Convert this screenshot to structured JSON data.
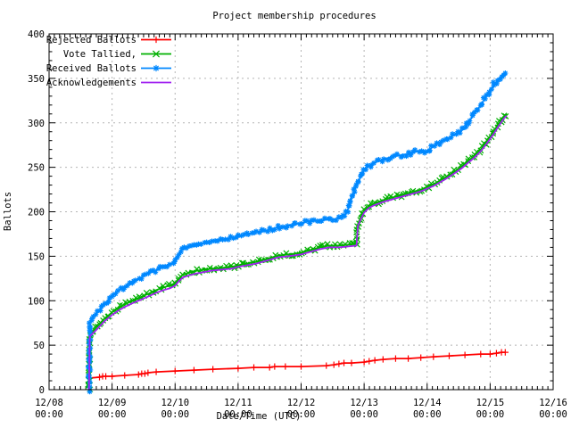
{
  "title": "Project membership procedures",
  "chart_data": {
    "type": "line",
    "title": "Project membership procedures",
    "xlabel": "Date/Time (UTC)",
    "ylabel": "Ballots",
    "grid": true,
    "legend_position": "top-left",
    "ylim": [
      0,
      400
    ],
    "y_ticks": [
      0,
      50,
      100,
      150,
      200,
      250,
      300,
      350,
      400
    ],
    "y_minor_step": 10,
    "x_tick_dates": [
      "12/08",
      "12/09",
      "12/10",
      "12/11",
      "12/12",
      "12/13",
      "12/14",
      "12/15",
      "12/16"
    ],
    "x_tick_time": "00:00",
    "x_range_days": [
      0,
      8
    ],
    "x_minor_per_day": 12,
    "series": [
      {
        "name": "Rejected Ballots",
        "color": "#ff0000",
        "marker": "plus",
        "marker_mode": "points",
        "points": [
          [
            0.635,
            0
          ],
          [
            0.645,
            13
          ],
          [
            0.8,
            14
          ],
          [
            0.85,
            15
          ],
          [
            0.9,
            15
          ],
          [
            1.0,
            15
          ],
          [
            1.2,
            16
          ],
          [
            1.42,
            17
          ],
          [
            1.47,
            18
          ],
          [
            1.52,
            18
          ],
          [
            1.57,
            19
          ],
          [
            1.7,
            20
          ],
          [
            2.0,
            21
          ],
          [
            2.3,
            22
          ],
          [
            2.6,
            23
          ],
          [
            3.0,
            24
          ],
          [
            3.25,
            25
          ],
          [
            3.5,
            25
          ],
          [
            3.58,
            26
          ],
          [
            3.75,
            26
          ],
          [
            4.0,
            26
          ],
          [
            4.4,
            27
          ],
          [
            4.52,
            28
          ],
          [
            4.6,
            29
          ],
          [
            4.68,
            30
          ],
          [
            4.8,
            30
          ],
          [
            5.0,
            31
          ],
          [
            5.08,
            32
          ],
          [
            5.17,
            33
          ],
          [
            5.3,
            34
          ],
          [
            5.5,
            35
          ],
          [
            5.7,
            35
          ],
          [
            5.9,
            36
          ],
          [
            6.1,
            37
          ],
          [
            6.35,
            38
          ],
          [
            6.6,
            39
          ],
          [
            6.85,
            40
          ],
          [
            7.0,
            40
          ],
          [
            7.1,
            41
          ],
          [
            7.18,
            42
          ],
          [
            7.24,
            42
          ]
        ]
      },
      {
        "name": "Vote Tallied,",
        "color": "#00b000",
        "marker": "cross",
        "marker_mode": "dense",
        "points": [
          [
            0.635,
            0
          ],
          [
            0.645,
            62
          ],
          [
            0.72,
            68
          ],
          [
            0.8,
            74
          ],
          [
            0.88,
            80
          ],
          [
            0.95,
            84
          ],
          [
            1.0,
            87
          ],
          [
            1.1,
            92
          ],
          [
            1.2,
            96
          ],
          [
            1.32,
            100
          ],
          [
            1.45,
            104
          ],
          [
            1.58,
            108
          ],
          [
            1.7,
            112
          ],
          [
            1.82,
            115
          ],
          [
            1.92,
            117
          ],
          [
            2.0,
            120
          ],
          [
            2.06,
            125
          ],
          [
            2.12,
            129
          ],
          [
            2.2,
            131
          ],
          [
            2.3,
            133
          ],
          [
            2.45,
            135
          ],
          [
            2.6,
            136
          ],
          [
            2.75,
            137
          ],
          [
            2.9,
            138
          ],
          [
            3.0,
            140
          ],
          [
            3.15,
            142
          ],
          [
            3.3,
            144
          ],
          [
            3.45,
            147
          ],
          [
            3.55,
            149
          ],
          [
            3.65,
            151
          ],
          [
            3.8,
            152
          ],
          [
            4.0,
            154
          ],
          [
            4.15,
            157
          ],
          [
            4.3,
            160
          ],
          [
            4.45,
            162
          ],
          [
            4.6,
            162
          ],
          [
            4.75,
            163
          ],
          [
            4.88,
            164
          ],
          [
            4.9,
            186
          ],
          [
            4.95,
            194
          ],
          [
            5.0,
            201
          ],
          [
            5.07,
            206
          ],
          [
            5.15,
            209
          ],
          [
            5.3,
            213
          ],
          [
            5.45,
            216
          ],
          [
            5.6,
            219
          ],
          [
            5.75,
            222
          ],
          [
            5.9,
            225
          ],
          [
            6.0,
            228
          ],
          [
            6.1,
            231
          ],
          [
            6.2,
            235
          ],
          [
            6.32,
            240
          ],
          [
            6.45,
            246
          ],
          [
            6.55,
            251
          ],
          [
            6.65,
            257
          ],
          [
            6.75,
            263
          ],
          [
            6.85,
            270
          ],
          [
            6.95,
            279
          ],
          [
            7.05,
            289
          ],
          [
            7.15,
            300
          ],
          [
            7.22,
            307
          ],
          [
            7.26,
            310
          ]
        ]
      },
      {
        "name": "Received Ballots",
        "color": "#0088ff",
        "marker": "asterisk",
        "marker_mode": "dense",
        "points": [
          [
            0.635,
            0
          ],
          [
            0.645,
            75
          ],
          [
            0.7,
            81
          ],
          [
            0.76,
            86
          ],
          [
            0.82,
            91
          ],
          [
            0.88,
            96
          ],
          [
            0.95,
            101
          ],
          [
            1.0,
            106
          ],
          [
            1.1,
            111
          ],
          [
            1.2,
            116
          ],
          [
            1.3,
            120
          ],
          [
            1.4,
            124
          ],
          [
            1.5,
            128
          ],
          [
            1.62,
            132
          ],
          [
            1.75,
            136
          ],
          [
            1.88,
            140
          ],
          [
            2.0,
            144
          ],
          [
            2.04,
            150
          ],
          [
            2.08,
            155
          ],
          [
            2.12,
            158
          ],
          [
            2.25,
            161
          ],
          [
            2.4,
            164
          ],
          [
            2.55,
            166
          ],
          [
            2.7,
            168
          ],
          [
            2.85,
            170
          ],
          [
            3.0,
            172
          ],
          [
            3.15,
            175
          ],
          [
            3.3,
            177
          ],
          [
            3.45,
            179
          ],
          [
            3.6,
            182
          ],
          [
            3.75,
            184
          ],
          [
            3.9,
            186
          ],
          [
            4.0,
            187
          ],
          [
            4.1,
            189
          ],
          [
            4.25,
            190
          ],
          [
            4.4,
            191
          ],
          [
            4.55,
            192
          ],
          [
            4.68,
            194
          ],
          [
            4.75,
            204
          ],
          [
            4.82,
            219
          ],
          [
            4.9,
            233
          ],
          [
            5.0,
            246
          ],
          [
            5.07,
            251
          ],
          [
            5.15,
            255
          ],
          [
            5.3,
            259
          ],
          [
            5.45,
            262
          ],
          [
            5.6,
            264
          ],
          [
            5.75,
            266
          ],
          [
            5.9,
            269
          ],
          [
            6.0,
            267
          ],
          [
            6.1,
            274
          ],
          [
            6.25,
            280
          ],
          [
            6.4,
            285
          ],
          [
            6.5,
            289
          ],
          [
            6.58,
            293
          ],
          [
            6.65,
            300
          ],
          [
            6.75,
            310
          ],
          [
            6.85,
            320
          ],
          [
            6.95,
            331
          ],
          [
            7.05,
            342
          ],
          [
            7.12,
            348
          ],
          [
            7.18,
            353
          ],
          [
            7.22,
            355
          ],
          [
            7.26,
            354
          ]
        ]
      },
      {
        "name": "Acknowledgements",
        "color": "#a020f0",
        "marker": "none",
        "marker_mode": "none",
        "points": [
          [
            0.635,
            0
          ],
          [
            0.645,
            60
          ],
          [
            0.72,
            65
          ],
          [
            0.8,
            71
          ],
          [
            0.88,
            77
          ],
          [
            0.95,
            81
          ],
          [
            1.0,
            84
          ],
          [
            1.1,
            89
          ],
          [
            1.2,
            93
          ],
          [
            1.32,
            97
          ],
          [
            1.45,
            101
          ],
          [
            1.58,
            105
          ],
          [
            1.7,
            109
          ],
          [
            1.82,
            112
          ],
          [
            1.92,
            114
          ],
          [
            2.0,
            117
          ],
          [
            2.06,
            122
          ],
          [
            2.12,
            126
          ],
          [
            2.2,
            128
          ],
          [
            2.3,
            130
          ],
          [
            2.45,
            132
          ],
          [
            2.6,
            134
          ],
          [
            2.75,
            135
          ],
          [
            2.9,
            136
          ],
          [
            3.0,
            138
          ],
          [
            3.15,
            140
          ],
          [
            3.3,
            142
          ],
          [
            3.45,
            145
          ],
          [
            3.55,
            147
          ],
          [
            3.65,
            149
          ],
          [
            3.8,
            150
          ],
          [
            4.0,
            152
          ],
          [
            4.15,
            155
          ],
          [
            4.3,
            158
          ],
          [
            4.45,
            160
          ],
          [
            4.6,
            160
          ],
          [
            4.75,
            161
          ],
          [
            4.88,
            162
          ],
          [
            4.9,
            184
          ],
          [
            4.95,
            192
          ],
          [
            5.0,
            199
          ],
          [
            5.07,
            204
          ],
          [
            5.15,
            207
          ],
          [
            5.3,
            211
          ],
          [
            5.45,
            214
          ],
          [
            5.6,
            217
          ],
          [
            5.75,
            220
          ],
          [
            5.9,
            223
          ],
          [
            6.0,
            226
          ],
          [
            6.1,
            229
          ],
          [
            6.2,
            233
          ],
          [
            6.32,
            238
          ],
          [
            6.45,
            244
          ],
          [
            6.55,
            249
          ],
          [
            6.65,
            255
          ],
          [
            6.75,
            261
          ],
          [
            6.85,
            268
          ],
          [
            6.95,
            277
          ],
          [
            7.05,
            287
          ],
          [
            7.15,
            298
          ],
          [
            7.22,
            305
          ],
          [
            7.26,
            308
          ]
        ]
      }
    ],
    "colors": {
      "grid": "#b4b4b4",
      "border": "#000000",
      "background": "#ffffff"
    }
  }
}
